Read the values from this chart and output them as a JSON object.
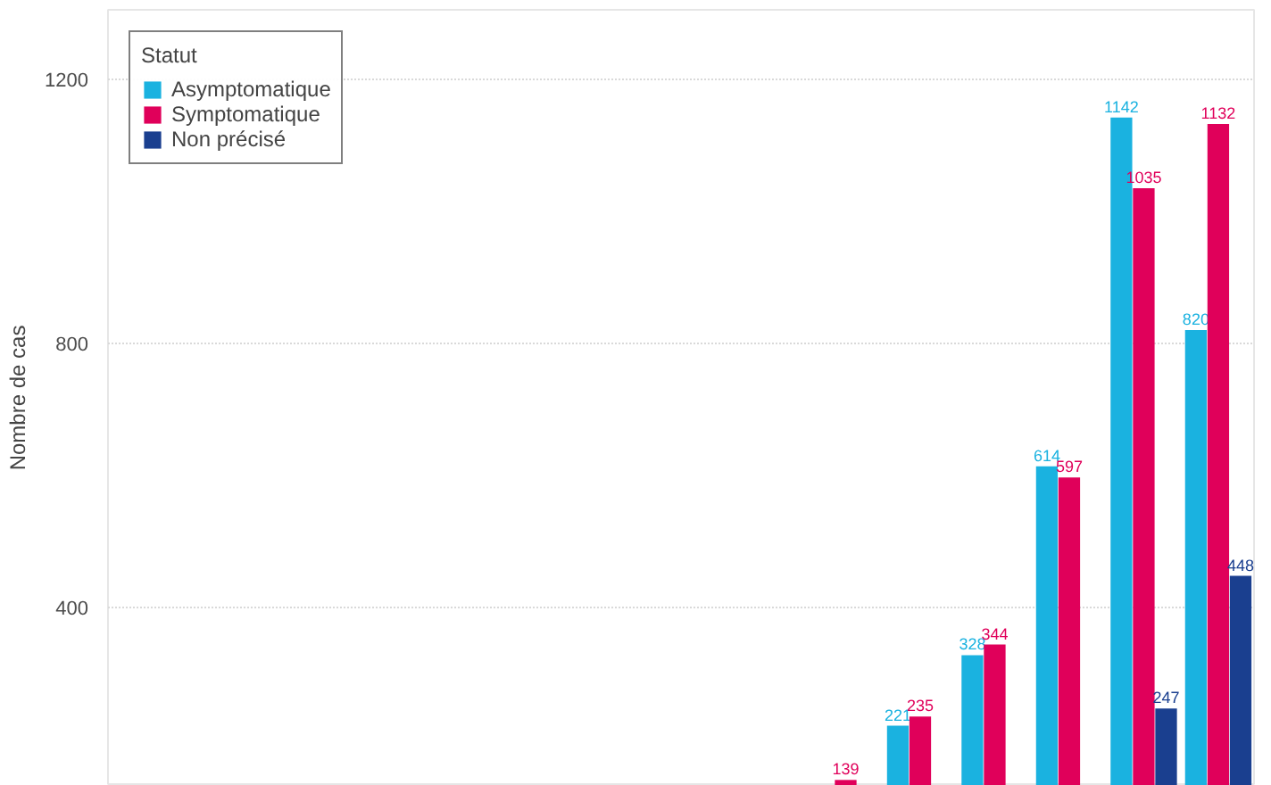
{
  "chart_data": {
    "type": "bar",
    "ylabel": "Nombre de cas",
    "legend_title": "Statut",
    "legend": "top left",
    "grid": "y",
    "tick_labels": "y",
    "data_labels": true,
    "categories": [
      null,
      null,
      null,
      null,
      null,
      null,
      null,
      null,
      null,
      null,
      null,
      null,
      null,
      null,
      null
    ],
    "ylim": [
      130,
      1305
    ],
    "yticks": [
      400,
      800,
      1200
    ],
    "series": [
      {
        "name": "Asymptomatique",
        "color": "#1ab2e0",
        "values": [
          null,
          null,
          null,
          null,
          null,
          null,
          null,
          null,
          null,
          null,
          221,
          328,
          614,
          1142,
          820
        ]
      },
      {
        "name": "Symptomatique",
        "color": "#e0005a",
        "values": [
          null,
          null,
          null,
          null,
          null,
          null,
          null,
          null,
          null,
          139,
          235,
          344,
          597,
          1035,
          1132
        ]
      },
      {
        "name": "Non précisé",
        "color": "#1a3f8f",
        "values": [
          null,
          null,
          null,
          null,
          null,
          null,
          null,
          null,
          null,
          null,
          null,
          null,
          null,
          247,
          448
        ]
      }
    ]
  }
}
